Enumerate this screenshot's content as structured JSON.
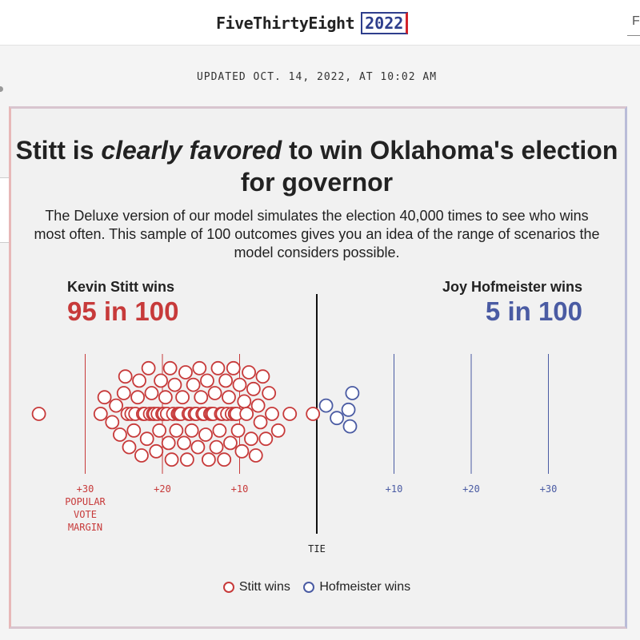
{
  "site": {
    "brand": "FiveThirtyEight",
    "year": "2022",
    "nav_partial": "F"
  },
  "updated": "UPDATED OCT. 14, 2022, AT 10:02 AM",
  "headline": {
    "before": "Stitt is ",
    "emphasis": "clearly favored",
    "after": " to win Oklahoma's election for governor"
  },
  "subtitle": "The Deluxe version of our model simulates the election 40,000 times to see who wins most often. This sample of 100 outcomes gives you an idea of the range of scenarios the model considers possible.",
  "candidates": {
    "left": {
      "label": "Kevin Stitt wins",
      "value": "95 in 100",
      "color": "#c73a3a"
    },
    "right": {
      "label": "Joy Hofmeister wins",
      "value": "5 in 100",
      "color": "#4a5ba3"
    }
  },
  "legend": [
    {
      "label": "Stitt wins",
      "color": "#c73a3a"
    },
    {
      "label": "Hofmeister wins",
      "color": "#4a5ba3"
    }
  ],
  "chart_data": {
    "type": "scatter",
    "xlabel": "POPULAR VOTE MARGIN",
    "center_label": "TIE",
    "xlim": [
      -31,
      31
    ],
    "ticks_left": [
      {
        "value": 30,
        "label": "+30"
      },
      {
        "value": 20,
        "label": "+20"
      },
      {
        "value": 10,
        "label": "+10"
      }
    ],
    "ticks_right": [
      {
        "value": 10,
        "label": "+10"
      },
      {
        "value": 20,
        "label": "+20"
      },
      {
        "value": 30,
        "label": "+30"
      }
    ],
    "colors": {
      "stitt": "#c73a3a",
      "hofmeister": "#4a5ba3"
    },
    "series": [
      {
        "name": "Stitt wins",
        "count": 95,
        "values": [
          36,
          28,
          27.5,
          26.5,
          26,
          25.5,
          25,
          24.8,
          24.5,
          24.3,
          24,
          23.7,
          23.5,
          23.2,
          23,
          22.7,
          22.5,
          22.3,
          22,
          21.8,
          21.6,
          21.4,
          21.2,
          21,
          20.8,
          20.6,
          20.4,
          20.2,
          20,
          19.8,
          19.6,
          19.4,
          19.2,
          19,
          18.8,
          18.6,
          18.4,
          18.2,
          18,
          17.8,
          17.6,
          17.4,
          17.2,
          17,
          16.8,
          16.6,
          16.4,
          16.2,
          16,
          15.8,
          15.6,
          15.4,
          15.2,
          15,
          14.8,
          14.6,
          14.4,
          14.2,
          14,
          13.8,
          13.6,
          13.4,
          13.2,
          13,
          12.8,
          12.6,
          12.4,
          12.2,
          12,
          11.8,
          11.6,
          11.4,
          11.2,
          11,
          10.8,
          10.6,
          10.4,
          10.2,
          10,
          9.7,
          9.4,
          9.1,
          8.8,
          8.5,
          8.2,
          7.9,
          7.6,
          7.3,
          7,
          6.6,
          6.2,
          5.8,
          5,
          3.5,
          0.5
        ]
      },
      {
        "name": "Hofmeister wins",
        "count": 5,
        "values": [
          1.2,
          2.6,
          4.1,
          4.3,
          4.6
        ]
      }
    ]
  }
}
